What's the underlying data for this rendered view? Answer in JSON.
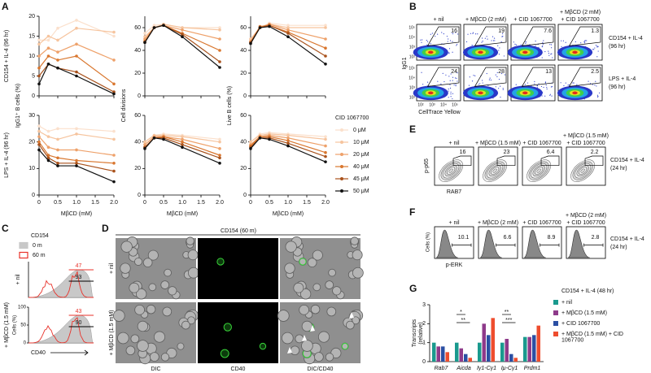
{
  "panel_labels": [
    "A",
    "B",
    "C",
    "D",
    "E",
    "F",
    "G"
  ],
  "panel_a": {
    "type": "line",
    "x": [
      0,
      0.25,
      0.5,
      1,
      2
    ],
    "xlim": [
      0,
      2
    ],
    "xticks": [
      0,
      0.5,
      {
        "value": 1,
        "label": "1.0"
      },
      1.5,
      {
        "value": 2,
        "label": "2.0"
      }
    ],
    "x_label": "MβCD (mM)",
    "row_labels": [
      "CD154 + IL-4 (96 hr)",
      "LPS + IL-4 (96 hr)"
    ],
    "legend_title": "CID 1067700",
    "series": [
      {
        "name": "0 μM",
        "color": "#fbe0cc"
      },
      {
        "name": "10 μM",
        "color": "#f6c49e"
      },
      {
        "name": "20 μM",
        "color": "#eea16a"
      },
      {
        "name": "40 μM",
        "color": "#d9772f"
      },
      {
        "name": "45 μM",
        "color": "#a9521c"
      },
      {
        "name": "50 μM",
        "color": "#111111"
      }
    ],
    "columns": [
      {
        "y_label": "IgG1⁺ B cells (%)",
        "plots": [
          {
            "ylim": [
              0,
              20
            ],
            "yticks": [
              0,
              5,
              10,
              15,
              20
            ],
            "values": [
              [
                14,
                14,
                17,
                19,
                15
              ],
              [
                13,
                15,
                14,
                17,
                16
              ],
              [
                10,
                12,
                11,
                13,
                9
              ],
              [
                7,
                10,
                9,
                10,
                3
              ],
              [
                5,
                8,
                7,
                6,
                1
              ],
              [
                3,
                8,
                7,
                5,
                0.5
              ]
            ]
          },
          {
            "ylim": [
              0,
              30
            ],
            "yticks": [
              0,
              10,
              20,
              30
            ],
            "values": [
              [
                26,
                24,
                25,
                25,
                24
              ],
              [
                24,
                22,
                21,
                23,
                21
              ],
              [
                22,
                18,
                17,
                17,
                15
              ],
              [
                20,
                15,
                14,
                13,
                12
              ],
              [
                19,
                14,
                12,
                12,
                9
              ],
              [
                17,
                13,
                11,
                11,
                5
              ]
            ]
          }
        ]
      },
      {
        "y_label": "Cell divisions",
        "plots": [
          {
            "ylim": [
              0,
              70
            ],
            "yticks": [
              0,
              20,
              40,
              60
            ],
            "values": [
              [
                55,
                62,
                63,
                60,
                60
              ],
              [
                52,
                60,
                63,
                60,
                58
              ],
              [
                50,
                60,
                62,
                58,
                50
              ],
              [
                48,
                60,
                62,
                55,
                40
              ],
              [
                47,
                60,
                62,
                54,
                30
              ],
              [
                47,
                60,
                62,
                52,
                25
              ]
            ]
          },
          {
            "ylim": [
              0,
              60
            ],
            "yticks": [
              0,
              20,
              40,
              60
            ],
            "values": [
              [
                40,
                45,
                46,
                45,
                42
              ],
              [
                40,
                45,
                45,
                44,
                40
              ],
              [
                38,
                44,
                44,
                42,
                35
              ],
              [
                36,
                43,
                44,
                40,
                30
              ],
              [
                36,
                43,
                43,
                38,
                28
              ],
              [
                35,
                43,
                42,
                36,
                24
              ]
            ]
          }
        ]
      },
      {
        "y_label": "Live B cells (%)",
        "plots": [
          {
            "ylim": [
              0,
              70
            ],
            "yticks": [
              0,
              20,
              40,
              60
            ],
            "values": [
              [
                50,
                60,
                64,
                62,
                62
              ],
              [
                50,
                60,
                63,
                60,
                60
              ],
              [
                48,
                60,
                63,
                58,
                50
              ],
              [
                47,
                61,
                62,
                56,
                42
              ],
              [
                47,
                60,
                62,
                55,
                35
              ],
              [
                46,
                60,
                61,
                52,
                28
              ]
            ]
          },
          {
            "ylim": [
              0,
              60
            ],
            "yticks": [
              0,
              20,
              40,
              60
            ],
            "values": [
              [
                40,
                46,
                47,
                46,
                44
              ],
              [
                40,
                45,
                46,
                45,
                42
              ],
              [
                38,
                44,
                45,
                43,
                37
              ],
              [
                37,
                44,
                44,
                41,
                32
              ],
              [
                36,
                43,
                43,
                39,
                29
              ],
              [
                35,
                43,
                42,
                37,
                25
              ]
            ]
          }
        ]
      }
    ]
  },
  "panel_b": {
    "headers": [
      [
        "+ nil"
      ],
      [
        "+ MβCD (2 mM)"
      ],
      [
        "+ CID 1067700"
      ],
      [
        "+ MβCD (2 mM)",
        "+ CID 1067700"
      ]
    ],
    "rows": [
      {
        "label": [
          "CD154 + IL-4",
          "(96 hr)"
        ],
        "values": [
          16,
          19,
          7.6,
          1.3
        ]
      },
      {
        "label": [
          "LPS + IL-4",
          "(96 hr)"
        ],
        "values": [
          24,
          28,
          13,
          2.5
        ]
      }
    ],
    "y_label": "IgG1",
    "x_label": "CellTrace Yellow",
    "axis_ticks": [
      "10²",
      "10³",
      "10⁴",
      "10⁵"
    ]
  },
  "panel_c": {
    "legend_title": "CD154",
    "legend": [
      {
        "name": "0 m",
        "color": "#c8c8c8"
      },
      {
        "name": "60 m",
        "color": "#e8322a"
      }
    ],
    "rows": [
      {
        "label": "+ nil",
        "values": [
          47,
          93
        ]
      },
      {
        "label": "+ MβCD (1.5 mM)",
        "values": [
          43,
          90
        ]
      }
    ],
    "y_label": "Cells (%)",
    "x_label": "CD40",
    "ylim": [
      0,
      100
    ],
    "yticks": [
      0,
      50,
      100
    ]
  },
  "panel_d": {
    "title": "CD154 (60 m)",
    "rows": [
      "+ nil",
      "+ MβCD (1.5 mM)"
    ],
    "columns": [
      "DIC",
      "CD40",
      "DIC/CD40"
    ]
  },
  "panel_e": {
    "headers": [
      [
        "+ nil"
      ],
      [
        "+ MβCD (1.5 mM)"
      ],
      [
        "+ CID 1067700"
      ],
      [
        "+ MβCD (1.5 mM)",
        "+ CID 1067700"
      ]
    ],
    "values": [
      16,
      23,
      6.4,
      2.2
    ],
    "side_label": [
      "CD154 + IL-4",
      "(24 hr)"
    ],
    "y_label": "p-p65",
    "x_label": "RAB7"
  },
  "panel_f": {
    "headers": [
      [
        "+ nil"
      ],
      [
        "+ MβCD (2 mM)"
      ],
      [
        "+ CID 1067700"
      ],
      [
        "+ MβCD (2 mM)",
        "+ CID 1067700"
      ]
    ],
    "values": [
      10.1,
      6.6,
      8.9,
      2.8
    ],
    "side_label": [
      "CD154 + IL-4",
      "(24 hr)"
    ],
    "y_label": "Cells (%)",
    "x_label": "p-ERK"
  },
  "panel_g": {
    "type": "bar",
    "title": "CD154 + IL-4 (48 hr)",
    "y_label": [
      "Transcripts",
      "(relative)"
    ],
    "categories": [
      "Rab7",
      "Aicda",
      "Iγ1-Cγ1",
      "Iμ-Cγ1",
      "Prdm1"
    ],
    "series": [
      {
        "name": "+ nil",
        "color": "#1a9a8e",
        "values": [
          1.0,
          1.0,
          1.0,
          1.0,
          1.3
        ]
      },
      {
        "name": "+ MβCD (1.5 mM)",
        "color": "#8e3a8a",
        "values": [
          0.8,
          0.7,
          2.0,
          1.2,
          1.3
        ]
      },
      {
        "name": "+ CID 1067700",
        "color": "#2b4fa3",
        "values": [
          0.8,
          0.4,
          1.4,
          0.4,
          1.4
        ]
      },
      {
        "name": "+ MβCD (1.5 mM) + CID 1067700",
        "color": "#ee4d2e",
        "values": [
          0.5,
          0.2,
          2.3,
          0.2,
          1.9
        ]
      }
    ],
    "ylim": [
      0,
      3
    ],
    "yticks": [
      0,
      1,
      2,
      3
    ],
    "annotations": [
      "*",
      "**",
      "**",
      "***"
    ]
  }
}
